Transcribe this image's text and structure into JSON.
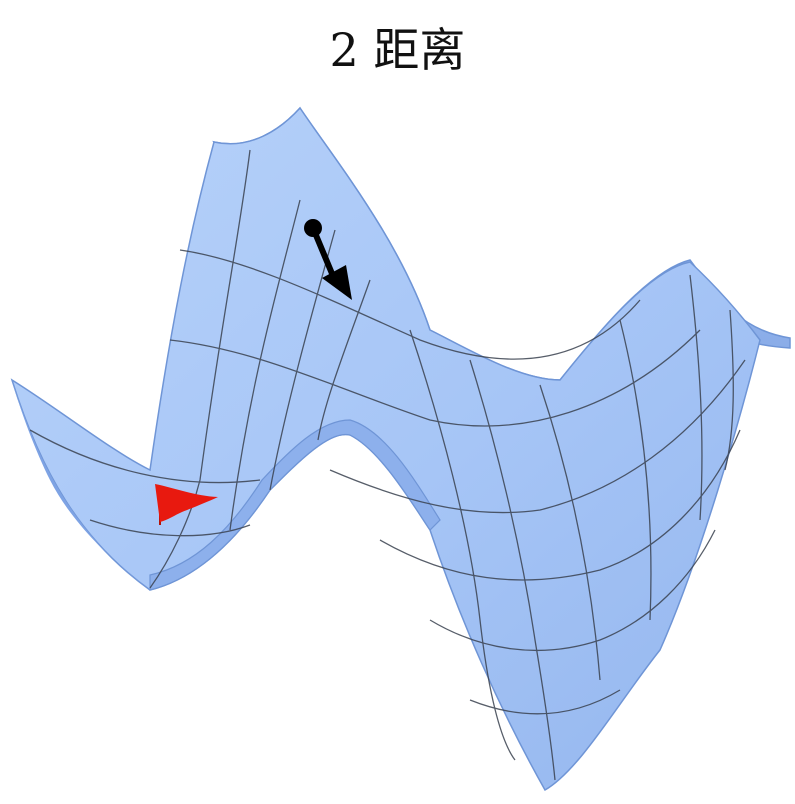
{
  "title": "2 距离",
  "colors": {
    "surface_fill": "#a9c8f7",
    "surface_shade": "#8fb1eb",
    "surface_edge": "#6f95d6",
    "grid_line": "#3a4250",
    "arrow": "#000000",
    "flag": "#e8190f"
  },
  "icons": {
    "marker": "black-ball-with-down-arrow",
    "goal": "red-flag"
  }
}
